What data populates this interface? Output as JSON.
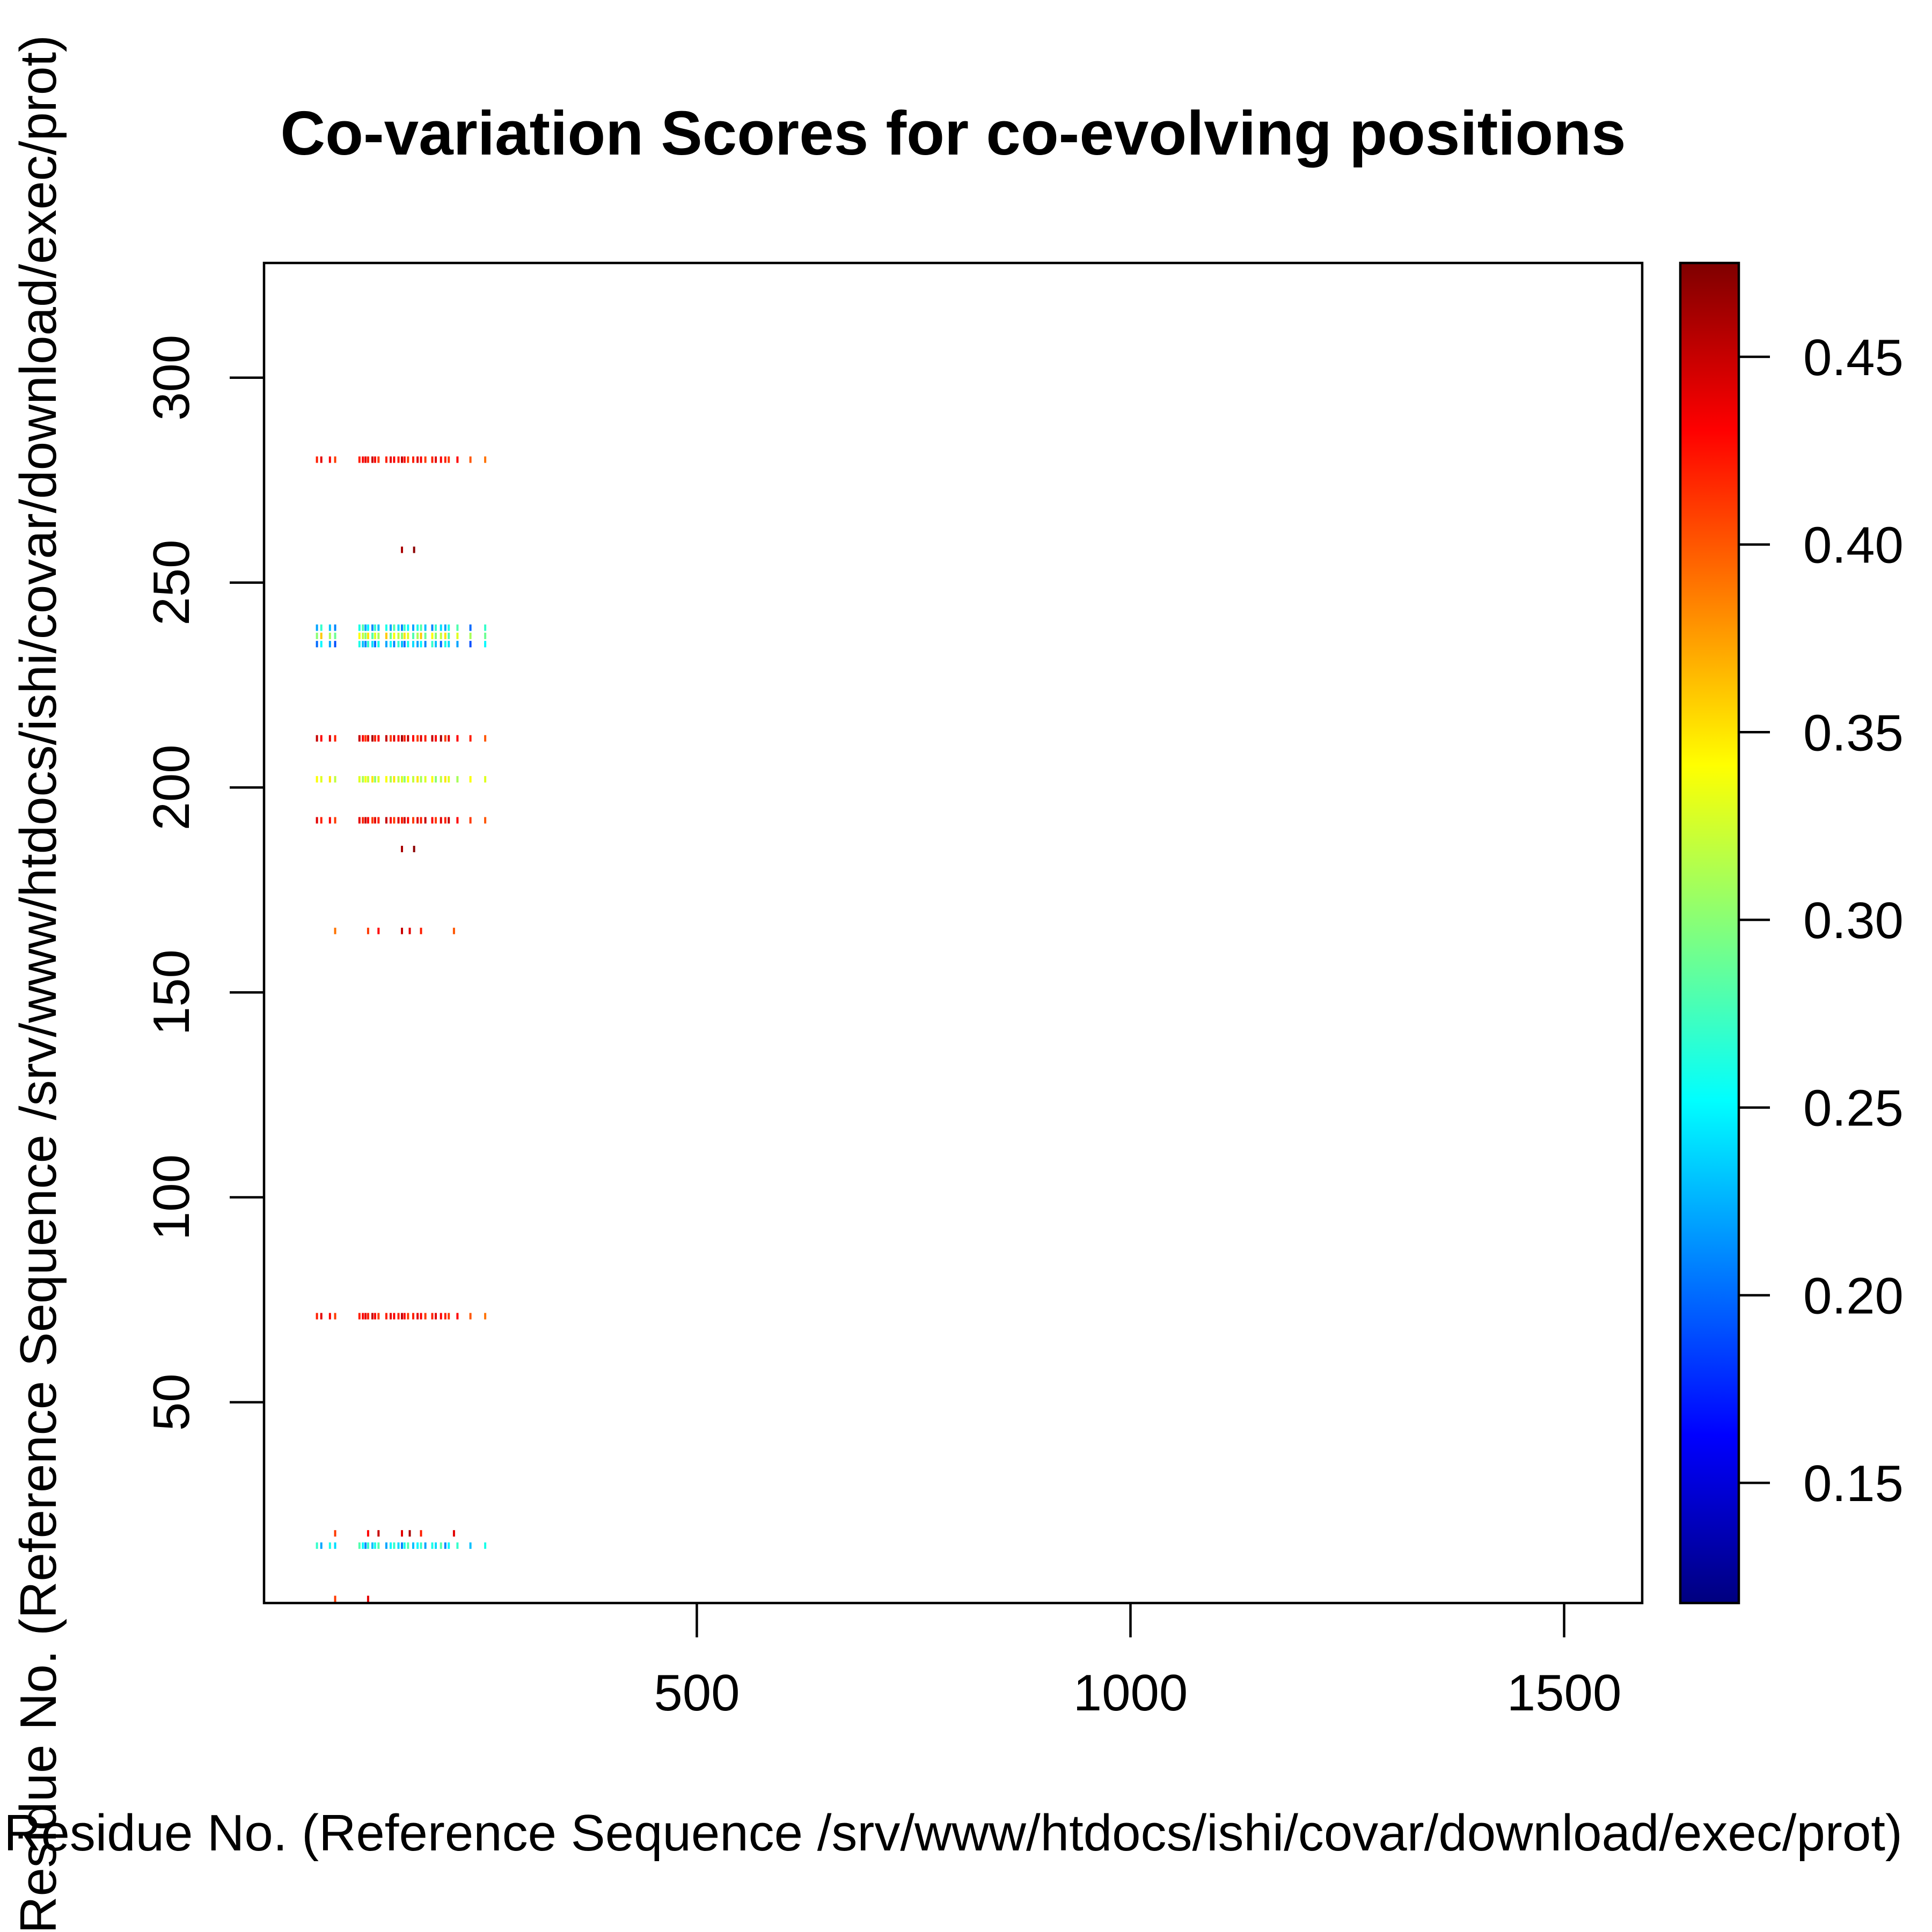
{
  "chart_data": {
    "type": "heatmap",
    "title": "Co-variation Scores for co-evolving positions",
    "xlabel": "Residue No. (Reference Sequence /srv/www/htdocs/ishi/covar/download/exec/prot)",
    "ylabel": "Residue No. (Reference Sequence /srv/www/htdocs/ishi/covar/download/exec/prot)",
    "xlim": [
      1,
      1590
    ],
    "ylim": [
      1,
      328
    ],
    "x_ticks": [
      500,
      1000,
      1500
    ],
    "x_tick_labels": [
      "500",
      "1000",
      "1500"
    ],
    "y_ticks": [
      50,
      100,
      150,
      200,
      250,
      300
    ],
    "y_tick_labels": [
      "50",
      "100",
      "150",
      "200",
      "250",
      "300"
    ],
    "colorbar": {
      "range": [
        0.118,
        0.475
      ],
      "ticks": [
        0.15,
        0.2,
        0.25,
        0.3,
        0.35,
        0.4,
        0.45
      ],
      "tick_labels": [
        "0.15",
        "0.20",
        "0.25",
        "0.30",
        "0.35",
        "0.40",
        "0.45"
      ],
      "colormap": [
        "#00007f",
        "#0000ff",
        "#007fff",
        "#00ffff",
        "#7fff7f",
        "#ffff00",
        "#ff7f00",
        "#ff0000",
        "#7f0000"
      ]
    },
    "rows": [
      {
        "y": 280,
        "x": [
          62,
          67,
          77,
          83,
          111,
          115,
          118,
          121,
          126,
          129,
          133,
          142,
          147,
          151,
          156,
          160,
          163,
          167,
          173,
          178,
          182,
          187,
          195,
          199,
          205,
          210,
          214,
          224,
          239,
          256
        ],
        "values": [
          0.42,
          0.44,
          0.43,
          0.41,
          0.42,
          0.43,
          0.44,
          0.42,
          0.45,
          0.43,
          0.41,
          0.42,
          0.44,
          0.43,
          0.42,
          0.45,
          0.43,
          0.41,
          0.42,
          0.44,
          0.43,
          0.41,
          0.42,
          0.44,
          0.43,
          0.42,
          0.41,
          0.43,
          0.4,
          0.39
        ]
      },
      {
        "y": 258,
        "x": [
          160,
          174
        ],
        "values": [
          0.46,
          0.47
        ]
      },
      {
        "y": 239,
        "x": [
          62,
          67,
          77,
          83,
          111,
          115,
          118,
          121,
          126,
          129,
          133,
          142,
          147,
          151,
          156,
          160,
          163,
          167,
          173,
          178,
          182,
          187,
          195,
          199,
          205,
          210,
          214,
          224,
          239,
          256
        ],
        "values": [
          0.22,
          0.27,
          0.23,
          0.21,
          0.26,
          0.28,
          0.22,
          0.25,
          0.21,
          0.27,
          0.23,
          0.26,
          0.22,
          0.28,
          0.24,
          0.21,
          0.27,
          0.25,
          0.22,
          0.26,
          0.28,
          0.23,
          0.21,
          0.27,
          0.24,
          0.22,
          0.26,
          0.28,
          0.2,
          0.27
        ]
      },
      {
        "y": 237,
        "x": [
          62,
          67,
          77,
          83,
          111,
          115,
          118,
          121,
          126,
          129,
          133,
          142,
          147,
          151,
          156,
          160,
          163,
          167,
          173,
          178,
          182,
          187,
          195,
          199,
          205,
          210,
          214,
          224,
          239,
          256
        ],
        "values": [
          0.3,
          0.36,
          0.31,
          0.29,
          0.34,
          0.32,
          0.3,
          0.35,
          0.28,
          0.33,
          0.31,
          0.36,
          0.29,
          0.34,
          0.32,
          0.3,
          0.35,
          0.33,
          0.28,
          0.31,
          0.36,
          0.29,
          0.34,
          0.3,
          0.32,
          0.35,
          0.28,
          0.33,
          0.31,
          0.29
        ]
      },
      {
        "y": 235,
        "x": [
          62,
          67,
          77,
          83,
          111,
          115,
          118,
          121,
          126,
          129,
          133,
          142,
          147,
          151,
          156,
          160,
          163,
          167,
          173,
          178,
          182,
          187,
          195,
          199,
          205,
          210,
          214,
          224,
          239,
          256
        ],
        "values": [
          0.2,
          0.25,
          0.22,
          0.19,
          0.26,
          0.23,
          0.21,
          0.27,
          0.24,
          0.2,
          0.26,
          0.22,
          0.25,
          0.21,
          0.27,
          0.23,
          0.2,
          0.26,
          0.24,
          0.22,
          0.25,
          0.21,
          0.27,
          0.23,
          0.2,
          0.26,
          0.24,
          0.22,
          0.19,
          0.25
        ]
      },
      {
        "y": 212,
        "x": [
          62,
          67,
          77,
          83,
          111,
          115,
          118,
          121,
          126,
          129,
          133,
          142,
          147,
          151,
          156,
          160,
          163,
          167,
          173,
          178,
          182,
          187,
          195,
          199,
          205,
          210,
          214,
          224,
          239,
          256
        ],
        "values": [
          0.45,
          0.43,
          0.44,
          0.42,
          0.45,
          0.43,
          0.41,
          0.44,
          0.46,
          0.42,
          0.43,
          0.45,
          0.41,
          0.44,
          0.43,
          0.46,
          0.42,
          0.45,
          0.43,
          0.41,
          0.44,
          0.42,
          0.45,
          0.43,
          0.46,
          0.41,
          0.44,
          0.43,
          0.42,
          0.4
        ]
      },
      {
        "y": 202,
        "x": [
          62,
          67,
          77,
          83,
          111,
          115,
          118,
          121,
          126,
          129,
          133,
          142,
          147,
          151,
          156,
          160,
          163,
          167,
          173,
          178,
          182,
          187,
          195,
          199,
          205,
          210,
          214,
          224,
          239,
          256
        ],
        "values": [
          0.34,
          0.33,
          0.35,
          0.32,
          0.33,
          0.31,
          0.34,
          0.32,
          0.35,
          0.3,
          0.33,
          0.34,
          0.31,
          0.35,
          0.32,
          0.33,
          0.3,
          0.34,
          0.32,
          0.35,
          0.31,
          0.33,
          0.34,
          0.3,
          0.32,
          0.35,
          0.33,
          0.31,
          0.34,
          0.33
        ]
      },
      {
        "y": 192,
        "x": [
          62,
          67,
          77,
          83,
          111,
          115,
          118,
          121,
          126,
          129,
          133,
          142,
          147,
          151,
          156,
          160,
          163,
          167,
          173,
          178,
          182,
          187,
          195,
          199,
          205,
          210,
          214,
          224,
          239,
          256
        ],
        "values": [
          0.44,
          0.42,
          0.43,
          0.41,
          0.44,
          0.42,
          0.45,
          0.43,
          0.41,
          0.44,
          0.42,
          0.45,
          0.43,
          0.41,
          0.44,
          0.42,
          0.45,
          0.43,
          0.41,
          0.44,
          0.42,
          0.45,
          0.43,
          0.41,
          0.44,
          0.42,
          0.45,
          0.43,
          0.41,
          0.4
        ]
      },
      {
        "y": 185,
        "x": [
          160,
          174
        ],
        "values": [
          0.46,
          0.47
        ]
      },
      {
        "y": 165,
        "x": [
          83,
          121,
          133,
          160,
          169,
          182,
          220
        ],
        "values": [
          0.39,
          0.41,
          0.43,
          0.45,
          0.44,
          0.42,
          0.4
        ]
      },
      {
        "y": 71,
        "x": [
          62,
          67,
          77,
          83,
          111,
          115,
          118,
          121,
          126,
          129,
          133,
          142,
          147,
          151,
          156,
          160,
          163,
          167,
          173,
          178,
          182,
          187,
          195,
          199,
          205,
          210,
          214,
          224,
          239,
          256
        ],
        "values": [
          0.42,
          0.44,
          0.43,
          0.41,
          0.42,
          0.43,
          0.44,
          0.42,
          0.45,
          0.43,
          0.41,
          0.42,
          0.44,
          0.43,
          0.42,
          0.45,
          0.43,
          0.41,
          0.42,
          0.44,
          0.43,
          0.41,
          0.42,
          0.44,
          0.43,
          0.42,
          0.41,
          0.43,
          0.4,
          0.39
        ]
      },
      {
        "y": 18,
        "x": [
          83,
          121,
          133,
          160,
          169,
          182,
          220
        ],
        "values": [
          0.41,
          0.43,
          0.45,
          0.44,
          0.46,
          0.42,
          0.44
        ]
      },
      {
        "y": 15,
        "x": [
          62,
          67,
          77,
          83,
          111,
          115,
          118,
          121,
          126,
          129,
          133,
          142,
          147,
          151,
          156,
          160,
          163,
          167,
          173,
          178,
          182,
          187,
          195,
          199,
          205,
          210,
          214,
          224,
          239,
          256
        ],
        "values": [
          0.27,
          0.22,
          0.26,
          0.24,
          0.28,
          0.25,
          0.21,
          0.27,
          0.23,
          0.26,
          0.28,
          0.22,
          0.25,
          0.27,
          0.24,
          0.21,
          0.26,
          0.28,
          0.23,
          0.25,
          0.27,
          0.22,
          0.26,
          0.24,
          0.28,
          0.21,
          0.25,
          0.27,
          0.23,
          0.26
        ]
      },
      {
        "y": 2,
        "x": [
          83,
          121
        ],
        "values": [
          0.41,
          0.44
        ]
      }
    ]
  }
}
